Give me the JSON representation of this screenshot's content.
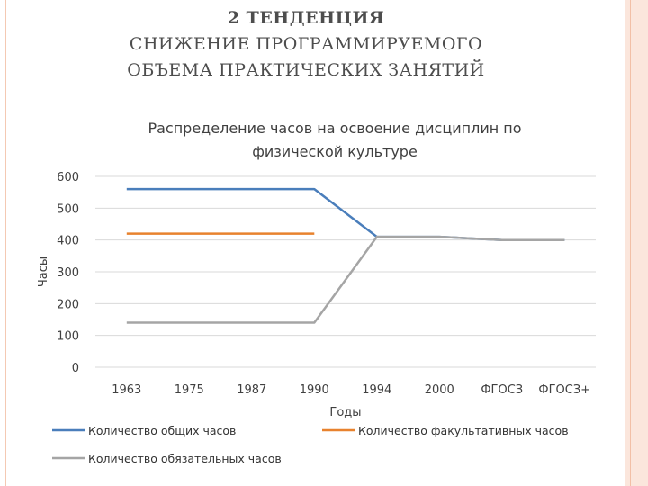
{
  "slide": {
    "title_line1": "2 ТЕНДЕНЦИЯ",
    "title_line2": "СНИЖЕНИЕ ПРОГРАММИРУЕМОГО",
    "title_line3": "ОБЪЕМА ПРАКТИЧЕСКИХ ЗАНЯТИЙ"
  },
  "chart_data": {
    "type": "line",
    "title_line1": "Распределение часов на освоение дисциплин по",
    "title_line2": "физической культуре",
    "xlabel": "Годы",
    "ylabel": "Часы",
    "ylim": [
      0,
      600
    ],
    "yticks": [
      0,
      100,
      200,
      300,
      400,
      500,
      600
    ],
    "grid": true,
    "legend_position": "bottom",
    "categories": [
      "1963",
      "1975",
      "1987",
      "1990",
      "1994",
      "2000",
      "ФГОСЗ",
      "ФГОСЗ+"
    ],
    "series": [
      {
        "name": "Количество общих часов",
        "color": "#4a7ebb",
        "values": [
          560,
          560,
          560,
          560,
          410,
          410,
          400,
          400
        ]
      },
      {
        "name": "Количество факультативных часов",
        "color": "#e8822e",
        "values": [
          420,
          420,
          420,
          420,
          null,
          null,
          null,
          null
        ]
      },
      {
        "name": "Количество обязательных часов",
        "color": "#a5a5a5",
        "values": [
          140,
          140,
          140,
          140,
          410,
          410,
          400,
          400
        ]
      }
    ]
  }
}
